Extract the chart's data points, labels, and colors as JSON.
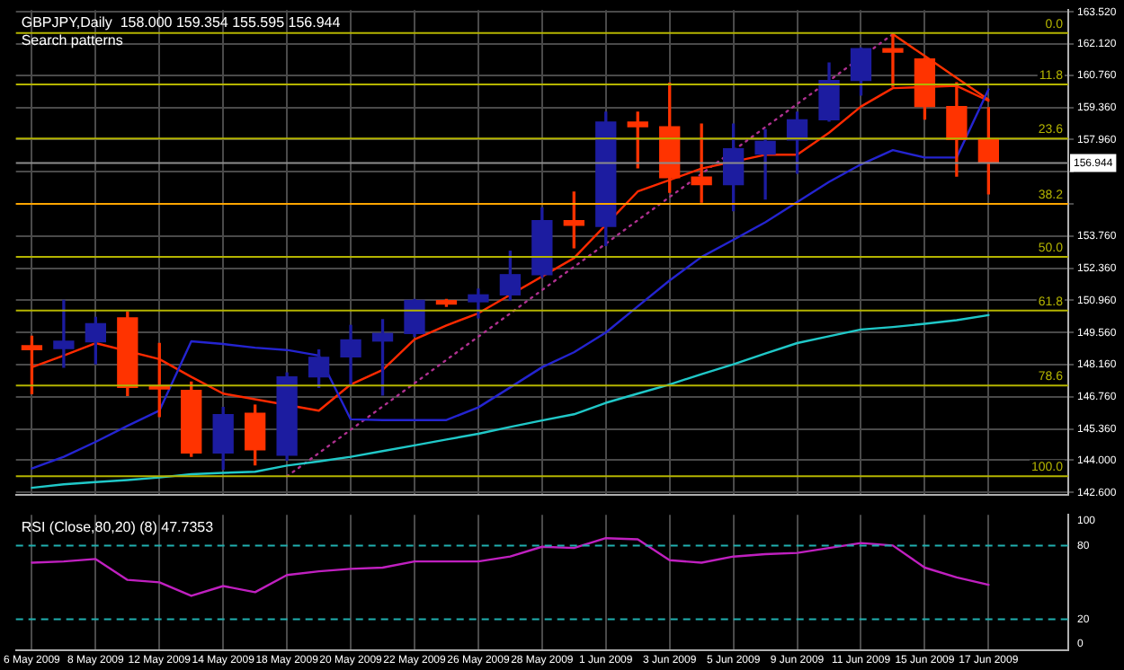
{
  "chart_data": [
    {
      "type": "candlestick",
      "title": "GBPJPY,Daily  158.000 159.354 155.595 156.944",
      "subtitle": "Search patterns",
      "categories": [
        null,
        null,
        null,
        null,
        null,
        null,
        null,
        null,
        null,
        null,
        null,
        null,
        null,
        null,
        null,
        null,
        null,
        null,
        null,
        null,
        null,
        null,
        null,
        null,
        null,
        null,
        null,
        null,
        null,
        null,
        null
      ],
      "ohlc": [
        [
          148.99,
          149.4,
          146.9,
          148.81
        ],
        [
          148.86,
          150.96,
          148.05,
          149.18
        ],
        [
          149.16,
          150.22,
          148.2,
          149.94
        ],
        [
          150.2,
          150.45,
          146.82,
          147.17
        ],
        [
          147.25,
          149.08,
          145.9,
          147.1
        ],
        [
          147.04,
          147.4,
          144.17,
          144.32
        ],
        [
          144.32,
          146.3,
          143.6,
          145.99
        ],
        [
          146.04,
          146.4,
          143.8,
          144.45
        ],
        [
          144.22,
          147.8,
          144.0,
          147.63
        ],
        [
          147.63,
          148.8,
          147.17,
          148.48
        ],
        [
          148.5,
          149.87,
          147.3,
          149.24
        ],
        [
          149.19,
          150.12,
          146.84,
          149.52
        ],
        [
          149.52,
          151.0,
          149.4,
          150.96
        ],
        [
          150.95,
          151.0,
          150.7,
          150.8
        ],
        [
          150.9,
          151.45,
          150.2,
          151.2
        ],
        [
          151.2,
          153.1,
          150.98,
          152.08
        ],
        [
          152.08,
          154.99,
          151.96,
          154.43
        ],
        [
          154.43,
          155.67,
          153.25,
          154.23
        ],
        [
          154.18,
          159.15,
          153.35,
          158.72
        ],
        [
          158.72,
          159.15,
          156.73,
          158.52
        ],
        [
          158.52,
          160.41,
          155.67,
          156.3
        ],
        [
          156.33,
          158.64,
          155.24,
          156.0
        ],
        [
          156.0,
          158.64,
          154.86,
          157.56
        ],
        [
          157.33,
          158.39,
          155.37,
          157.88
        ],
        [
          157.94,
          159.15,
          156.5,
          158.82
        ],
        [
          158.82,
          161.29,
          158.77,
          160.53
        ],
        [
          160.53,
          161.95,
          159.9,
          161.92
        ],
        [
          161.92,
          162.55,
          160.28,
          161.77
        ],
        [
          161.47,
          161.5,
          158.85,
          159.4
        ],
        [
          159.4,
          160.43,
          156.37,
          157.96
        ],
        [
          158.0,
          159.354,
          155.595,
          156.944
        ]
      ],
      "colors": [
        "#ff3300",
        "#1c1ca0",
        "#1c1ca0",
        "#ff3300",
        "#ff3300",
        "#ff3300",
        "#1c1ca0",
        "#ff3300",
        "#1c1ca0",
        "#1c1ca0",
        "#1c1ca0",
        "#1c1ca0",
        "#1c1ca0",
        "#ff3300",
        "#1c1ca0",
        "#1c1ca0",
        "#1c1ca0",
        "#ff3300",
        "#1c1ca0",
        "#ff3300",
        "#ff3300",
        "#ff3300",
        "#1c1ca0",
        "#1c1ca0",
        "#1c1ca0",
        "#1c1ca0",
        "#1c1ca0",
        "#ff3300",
        "#ff3300",
        "#ff3300",
        "#ff3300"
      ],
      "series": [
        {
          "type": "line",
          "color": "#20c8c8",
          "values": [
            142.8,
            142.95,
            143.05,
            143.14,
            143.25,
            143.39,
            143.45,
            143.5,
            143.77,
            143.95,
            144.15,
            144.4,
            144.65,
            144.9,
            145.15,
            145.45,
            145.73,
            146.0,
            146.5,
            146.9,
            147.3,
            147.75,
            148.18,
            148.65,
            149.1,
            149.4,
            149.69,
            149.8,
            149.94,
            150.1,
            150.32
          ]
        },
        {
          "type": "line",
          "color": "#2424d0",
          "values": [
            143.64,
            144.15,
            144.8,
            145.5,
            146.16,
            149.18,
            149.06,
            148.9,
            148.8,
            148.56,
            145.78,
            145.75,
            145.75,
            145.75,
            146.3,
            147.17,
            148.05,
            148.7,
            149.56,
            150.7,
            151.83,
            152.85,
            153.6,
            154.36,
            155.24,
            156.12,
            156.88,
            157.5,
            157.18,
            157.18,
            160.15
          ]
        },
        {
          "type": "line",
          "color": "#ff2a00",
          "values": [
            148.05,
            148.56,
            149.1,
            null,
            148.4,
            147.63,
            146.9,
            null,
            null,
            146.16,
            147.3,
            147.93,
            149.26,
            149.87,
            150.4,
            null,
            null,
            152.8,
            null,
            155.7,
            null,
            156.7,
            null,
            157.3,
            157.3,
            158.26,
            159.4,
            160.2,
            null,
            160.3,
            159.65
          ]
        },
        {
          "type": "line",
          "color": "#b03090",
          "line_style": "dotted",
          "values": [
            null,
            null,
            null,
            null,
            null,
            null,
            null,
            null,
            143.3,
            144.31,
            145.33,
            146.34,
            147.35,
            148.37,
            149.38,
            150.39,
            151.41,
            152.42,
            153.43,
            154.45,
            155.46,
            156.47,
            null,
            158.5,
            159.51,
            null,
            null,
            162.55,
            null,
            null,
            null
          ]
        },
        {
          "type": "line",
          "color": "#ff3300",
          "values": [
            null,
            null,
            null,
            null,
            null,
            null,
            null,
            null,
            null,
            null,
            null,
            null,
            null,
            null,
            null,
            null,
            null,
            null,
            null,
            null,
            null,
            null,
            null,
            null,
            null,
            null,
            null,
            162.55,
            161.6,
            160.65,
            159.7
          ]
        }
      ],
      "ylim": [
        142.5,
        163.6
      ],
      "yticks": [
        {
          "value": 163.52,
          "label": "163.520"
        },
        {
          "value": 162.12,
          "label": "162.120"
        },
        {
          "value": 160.76,
          "label": "160.760"
        },
        {
          "value": 159.36,
          "label": "159.360"
        },
        {
          "value": 157.96,
          "label": "157.960"
        },
        {
          "value": 156.56,
          "label": null
        },
        {
          "value": 155.16,
          "label": null
        },
        {
          "value": 153.76,
          "label": "153.760"
        },
        {
          "value": 152.36,
          "label": "152.360"
        },
        {
          "value": 150.96,
          "label": "150.960"
        },
        {
          "value": 149.56,
          "label": "149.560"
        },
        {
          "value": 148.16,
          "label": "148.160"
        },
        {
          "value": 146.76,
          "label": "146.760"
        },
        {
          "value": 145.36,
          "label": "145.360"
        },
        {
          "value": 144.0,
          "label": "144.000"
        },
        {
          "value": 142.6,
          "label": "142.600"
        }
      ],
      "ref_lines": [
        {
          "axis": "y",
          "value": 162.6,
          "color": "#b4b400"
        },
        {
          "axis": "y",
          "value": 160.36,
          "color": "#b4b400"
        },
        {
          "axis": "y",
          "value": 158.01,
          "color": "#b4b400"
        },
        {
          "axis": "y",
          "value": 156.944,
          "label": "156.944",
          "color": "#8c8c8c"
        },
        {
          "axis": "y",
          "value": 155.16,
          "color": "#ffa500"
        },
        {
          "axis": "y",
          "value": 152.85,
          "color": "#b4b400"
        },
        {
          "axis": "y",
          "value": 150.52,
          "color": "#b4b400"
        },
        {
          "axis": "y",
          "value": 147.25,
          "color": "#b4b400"
        },
        {
          "axis": "y",
          "value": 143.3,
          "color": "#b4b400"
        }
      ],
      "annotations": [
        {
          "text": "0.0",
          "y": 162.6
        },
        {
          "text": "11.8",
          "y": 160.36
        },
        {
          "text": "23.6",
          "y": 158.01
        },
        {
          "text": "38.2",
          "y": 155.16
        },
        {
          "text": "50.0",
          "y": 152.85
        },
        {
          "text": "61.8",
          "y": 150.52
        },
        {
          "text": "78.6",
          "y": 147.25
        },
        {
          "text": "100.0",
          "y": 143.3
        }
      ],
      "grid": true,
      "tick_labels": "y"
    },
    {
      "type": "line",
      "title": "RSI (Close,80,20) (8) 47.7353",
      "categories": [
        "6 May 2009",
        null,
        "8 May 2009",
        null,
        "12 May 2009",
        null,
        "14 May 2009",
        null,
        "18 May 2009",
        null,
        "20 May 2009",
        null,
        "22 May 2009",
        null,
        "26 May 2009",
        null,
        "28 May 2009",
        null,
        "1 Jun 2009",
        null,
        "3 Jun 2009",
        null,
        "5 Jun 2009",
        null,
        "9 Jun 2009",
        null,
        "11 Jun 2009",
        null,
        "15 Jun 2009",
        null,
        "17 Jun 2009"
      ],
      "values": [
        66,
        67,
        69,
        52,
        50,
        39,
        47,
        42,
        56,
        59,
        61,
        62,
        67,
        67,
        67,
        71,
        79,
        78,
        86,
        85,
        68,
        66,
        71,
        73,
        74,
        78,
        82,
        80,
        62,
        54,
        48
      ],
      "color": "#c020c0",
      "ylim": [
        -5,
        105
      ],
      "yticks": [
        0,
        20,
        80,
        100
      ],
      "ref_lines": [
        {
          "axis": "y",
          "value": 80,
          "color": "#20b0b0",
          "line_style": "dashed"
        },
        {
          "axis": "y",
          "value": 20,
          "color": "#20b0b0",
          "line_style": "dashed"
        }
      ],
      "grid": "x"
    }
  ]
}
